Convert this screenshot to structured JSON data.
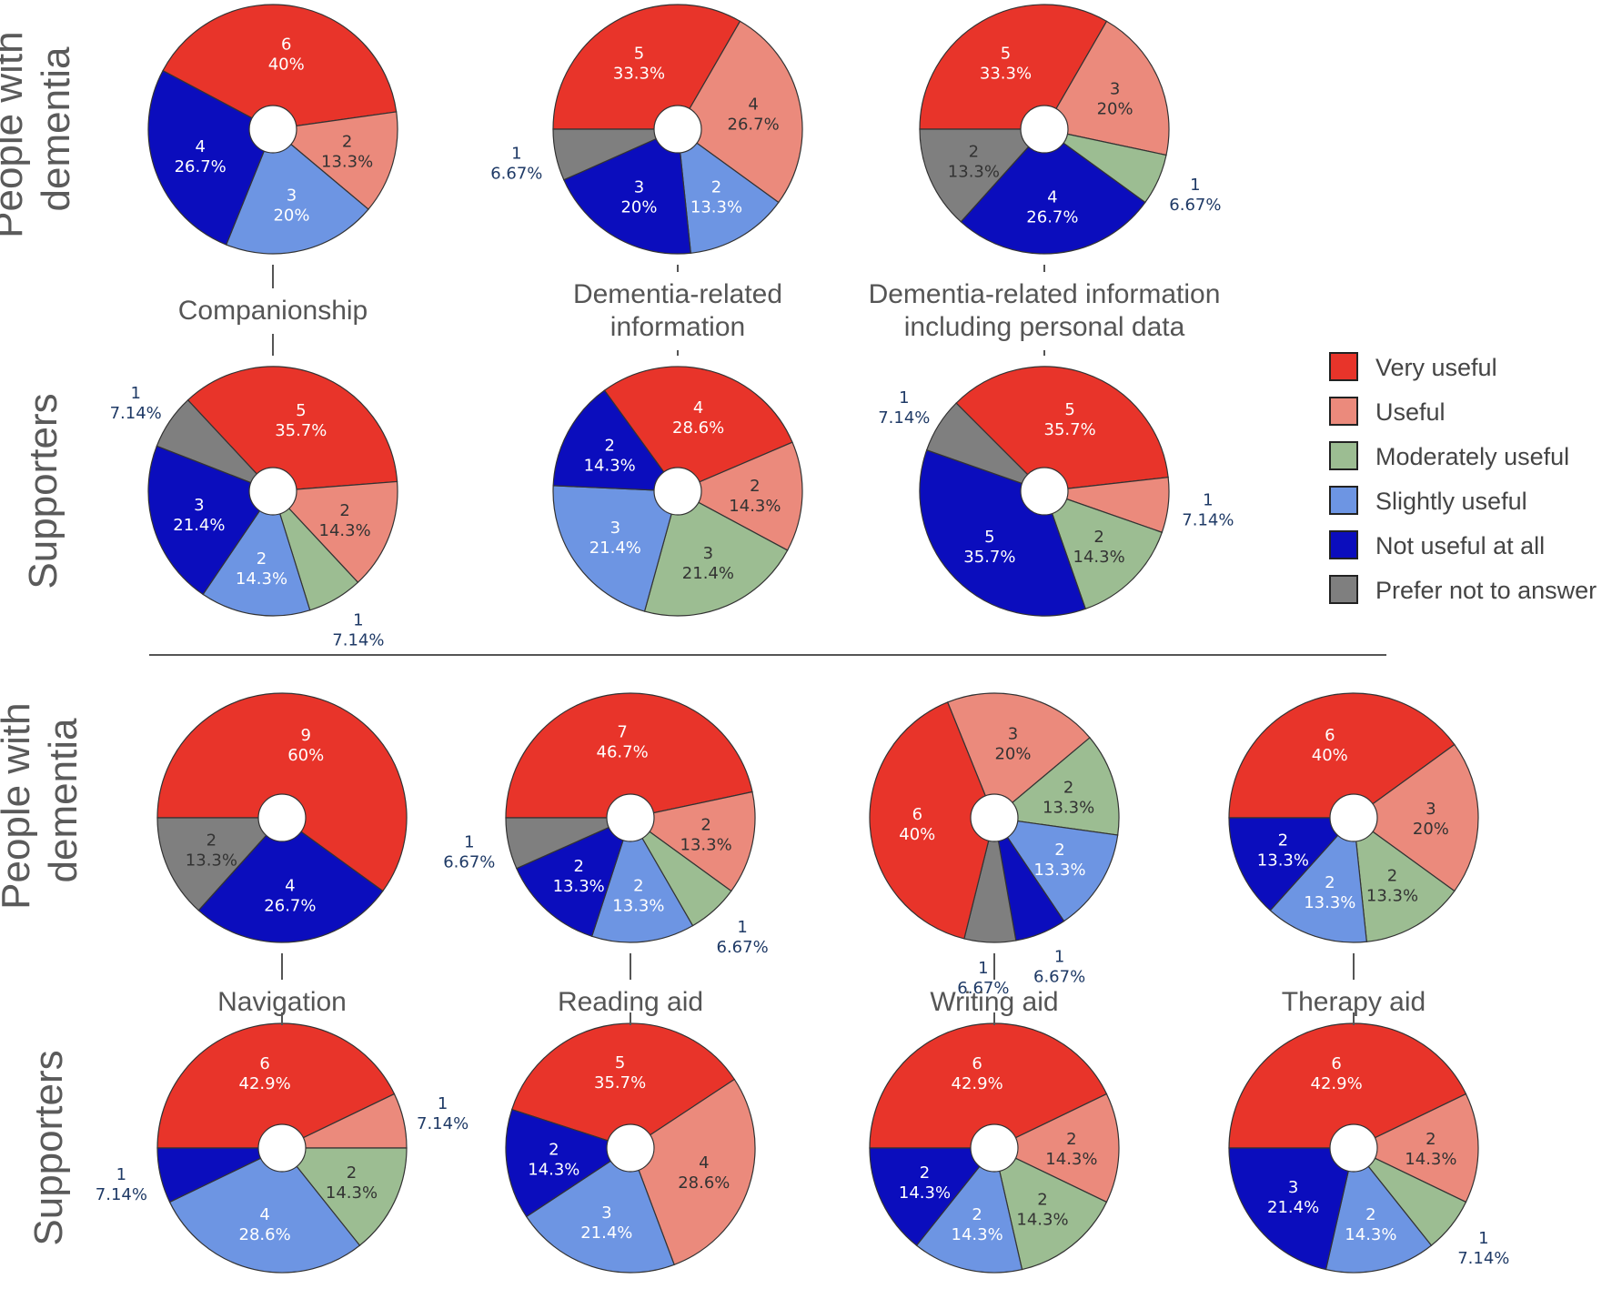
{
  "row_labels": {
    "pwd": [
      "People with",
      "dementia"
    ],
    "sup": "Supporters"
  },
  "legend": [
    {
      "key": "very",
      "label": "Very useful",
      "color": "#e8342a"
    },
    {
      "key": "useful",
      "label": "Useful",
      "color": "#eb8a7c"
    },
    {
      "key": "moderate",
      "label": "Moderately useful",
      "color": "#9cbd92"
    },
    {
      "key": "slight",
      "label": "Slightly useful",
      "color": "#6d95e3"
    },
    {
      "key": "not",
      "label": "Not useful at all",
      "color": "#0b0dbd"
    },
    {
      "key": "prefer",
      "label": "Prefer not to answer",
      "color": "#7f7f7f"
    }
  ],
  "chart_data": [
    {
      "type": "pie",
      "title": [
        "Companionship"
      ],
      "group": "People with dementia",
      "slices": [
        {
          "cat": "very",
          "count": "6",
          "pct": "40%"
        },
        {
          "cat": "useful",
          "count": "2",
          "pct": "13.3%"
        },
        {
          "cat": "slight",
          "count": "3",
          "pct": "20%"
        },
        {
          "cat": "not",
          "count": "4",
          "pct": "26.7%"
        }
      ]
    },
    {
      "type": "pie",
      "title": [
        "Companionship"
      ],
      "group": "Supporters",
      "slices": [
        {
          "cat": "very",
          "count": "5",
          "pct": "35.7%"
        },
        {
          "cat": "useful",
          "count": "2",
          "pct": "14.3%"
        },
        {
          "cat": "moderate",
          "count": "1",
          "pct": "7.14%"
        },
        {
          "cat": "slight",
          "count": "2",
          "pct": "14.3%"
        },
        {
          "cat": "not",
          "count": "3",
          "pct": "21.4%"
        },
        {
          "cat": "prefer",
          "count": "1",
          "pct": "7.14%"
        }
      ]
    },
    {
      "type": "pie",
      "title": [
        "Dementia-related",
        "information"
      ],
      "group": "People with dementia",
      "slices": [
        {
          "cat": "very",
          "count": "5",
          "pct": "33.3%"
        },
        {
          "cat": "useful",
          "count": "4",
          "pct": "26.7%"
        },
        {
          "cat": "slight",
          "count": "2",
          "pct": "13.3%"
        },
        {
          "cat": "not",
          "count": "3",
          "pct": "20%"
        },
        {
          "cat": "prefer",
          "count": "1",
          "pct": "6.67%"
        }
      ]
    },
    {
      "type": "pie",
      "title": [
        "Dementia-related",
        "information"
      ],
      "group": "Supporters",
      "slices": [
        {
          "cat": "very",
          "count": "4",
          "pct": "28.6%"
        },
        {
          "cat": "useful",
          "count": "2",
          "pct": "14.3%"
        },
        {
          "cat": "moderate",
          "count": "3",
          "pct": "21.4%"
        },
        {
          "cat": "slight",
          "count": "3",
          "pct": "21.4%"
        },
        {
          "cat": "not",
          "count": "2",
          "pct": "14.3%"
        }
      ]
    },
    {
      "type": "pie",
      "title": [
        "Dementia-related information",
        "including personal data"
      ],
      "group": "People with dementia",
      "slices": [
        {
          "cat": "very",
          "count": "5",
          "pct": "33.3%"
        },
        {
          "cat": "useful",
          "count": "3",
          "pct": "20%"
        },
        {
          "cat": "moderate",
          "count": "1",
          "pct": "6.67%"
        },
        {
          "cat": "not",
          "count": "4",
          "pct": "26.7%"
        },
        {
          "cat": "prefer",
          "count": "2",
          "pct": "13.3%"
        }
      ]
    },
    {
      "type": "pie",
      "title": [
        "Dementia-related information",
        "including personal data"
      ],
      "group": "Supporters",
      "slices": [
        {
          "cat": "very",
          "count": "5",
          "pct": "35.7%"
        },
        {
          "cat": "useful",
          "count": "1",
          "pct": "7.14%"
        },
        {
          "cat": "moderate",
          "count": "2",
          "pct": "14.3%"
        },
        {
          "cat": "not",
          "count": "5",
          "pct": "35.7%"
        },
        {
          "cat": "prefer",
          "count": "1",
          "pct": "7.14%"
        }
      ]
    },
    {
      "type": "pie",
      "title": [
        "Navigation"
      ],
      "group": "People with dementia",
      "slices": [
        {
          "cat": "very",
          "count": "9",
          "pct": "60%"
        },
        {
          "cat": "not",
          "count": "4",
          "pct": "26.7%"
        },
        {
          "cat": "prefer",
          "count": "2",
          "pct": "13.3%"
        }
      ]
    },
    {
      "type": "pie",
      "title": [
        "Navigation"
      ],
      "group": "Supporters",
      "slices": [
        {
          "cat": "very",
          "count": "6",
          "pct": "42.9%"
        },
        {
          "cat": "useful",
          "count": "1",
          "pct": "7.14%"
        },
        {
          "cat": "moderate",
          "count": "2",
          "pct": "14.3%"
        },
        {
          "cat": "slight",
          "count": "4",
          "pct": "28.6%"
        },
        {
          "cat": "not",
          "count": "1",
          "pct": "7.14%"
        }
      ]
    },
    {
      "type": "pie",
      "title": [
        "Reading aid"
      ],
      "group": "People with dementia",
      "slices": [
        {
          "cat": "very",
          "count": "7",
          "pct": "46.7%"
        },
        {
          "cat": "useful",
          "count": "2",
          "pct": "13.3%"
        },
        {
          "cat": "moderate",
          "count": "1",
          "pct": "6.67%"
        },
        {
          "cat": "slight",
          "count": "2",
          "pct": "13.3%"
        },
        {
          "cat": "not",
          "count": "2",
          "pct": "13.3%"
        },
        {
          "cat": "prefer",
          "count": "1",
          "pct": "6.67%"
        }
      ]
    },
    {
      "type": "pie",
      "title": [
        "Reading aid"
      ],
      "group": "Supporters",
      "slices": [
        {
          "cat": "very",
          "count": "5",
          "pct": "35.7%"
        },
        {
          "cat": "useful",
          "count": "4",
          "pct": "28.6%"
        },
        {
          "cat": "slight",
          "count": "3",
          "pct": "21.4%"
        },
        {
          "cat": "not",
          "count": "2",
          "pct": "14.3%"
        }
      ]
    },
    {
      "type": "pie",
      "title": [
        "Writing aid"
      ],
      "group": "People with dementia",
      "slices": [
        {
          "cat": "useful",
          "count": "3",
          "pct": "20%"
        },
        {
          "cat": "moderate",
          "count": "2",
          "pct": "13.3%"
        },
        {
          "cat": "slight",
          "count": "2",
          "pct": "13.3%"
        },
        {
          "cat": "not",
          "count": "1",
          "pct": "6.67%"
        },
        {
          "cat": "prefer",
          "count": "1",
          "pct": "6.67%"
        },
        {
          "cat": "very",
          "count": "6",
          "pct": "40%"
        }
      ]
    },
    {
      "type": "pie",
      "title": [
        "Writing aid"
      ],
      "group": "Supporters",
      "slices": [
        {
          "cat": "very",
          "count": "6",
          "pct": "42.9%"
        },
        {
          "cat": "useful",
          "count": "2",
          "pct": "14.3%"
        },
        {
          "cat": "moderate",
          "count": "2",
          "pct": "14.3%"
        },
        {
          "cat": "slight",
          "count": "2",
          "pct": "14.3%"
        },
        {
          "cat": "not",
          "count": "2",
          "pct": "14.3%"
        }
      ]
    },
    {
      "type": "pie",
      "title": [
        "Therapy aid"
      ],
      "group": "People with dementia",
      "slices": [
        {
          "cat": "very",
          "count": "6",
          "pct": "40%"
        },
        {
          "cat": "useful",
          "count": "3",
          "pct": "20%"
        },
        {
          "cat": "moderate",
          "count": "2",
          "pct": "13.3%"
        },
        {
          "cat": "slight",
          "count": "2",
          "pct": "13.3%"
        },
        {
          "cat": "not",
          "count": "2",
          "pct": "13.3%"
        }
      ]
    },
    {
      "type": "pie",
      "title": [
        "Therapy aid"
      ],
      "group": "Supporters",
      "slices": [
        {
          "cat": "very",
          "count": "6",
          "pct": "42.9%"
        },
        {
          "cat": "useful",
          "count": "2",
          "pct": "14.3%"
        },
        {
          "cat": "moderate",
          "count": "1",
          "pct": "7.14%"
        },
        {
          "cat": "slight",
          "count": "2",
          "pct": "14.3%"
        },
        {
          "cat": "not",
          "count": "3",
          "pct": "21.4%"
        }
      ]
    }
  ]
}
